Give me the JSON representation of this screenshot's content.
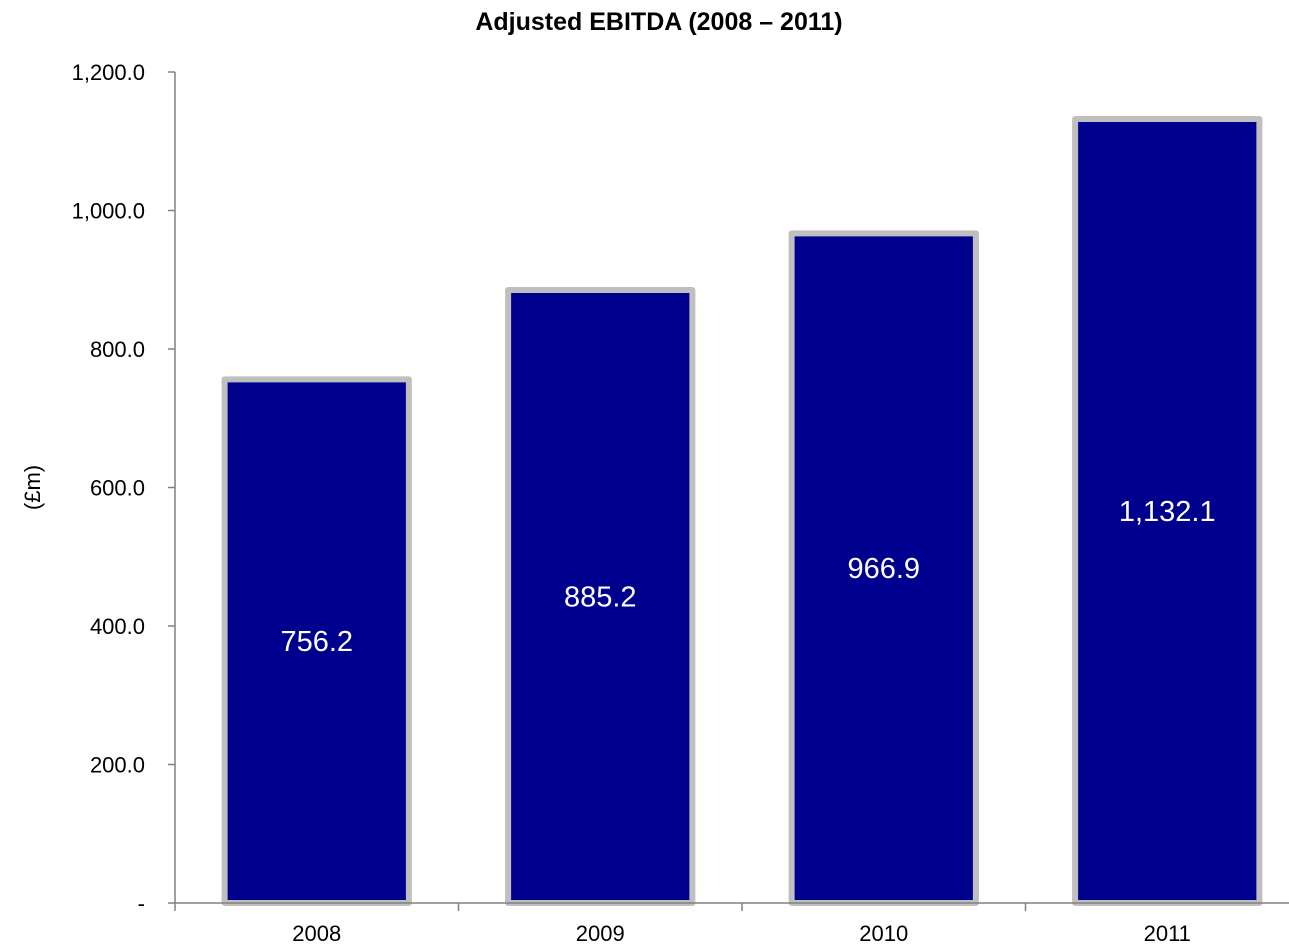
{
  "chart_data": {
    "type": "bar",
    "title": "Adjusted EBITDA (2008 – 2011)",
    "xlabel": "",
    "ylabel": "(£m)",
    "categories": [
      "2008",
      "2009",
      "2010",
      "2011"
    ],
    "values": [
      756.2,
      885.2,
      966.9,
      1132.1
    ],
    "data_labels": [
      "756.2",
      "885.2",
      "966.9",
      "1,132.1"
    ],
    "ylim": [
      0,
      1200
    ],
    "yticks": [
      0,
      200,
      400,
      600,
      800,
      1000,
      1200
    ],
    "ytick_labels": [
      "-",
      "200.0",
      "400.0",
      "600.0",
      "800.0",
      "1,000.0",
      "1,200.0"
    ],
    "grid": false,
    "legend": "none",
    "colors": {
      "bar_fill": "#00008E",
      "bar_border": "#BFBFBF",
      "axis": "#808080"
    }
  }
}
